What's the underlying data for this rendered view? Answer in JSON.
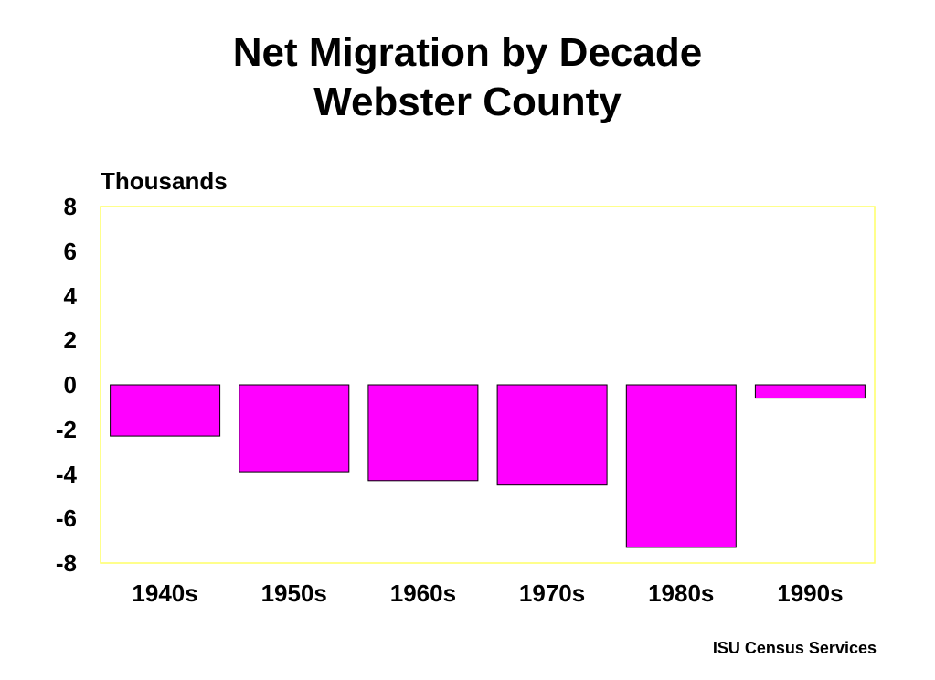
{
  "chart_data": {
    "type": "bar",
    "title": "Net Migration by Decade",
    "subtitle": "Webster County",
    "ylabel": "Thousands",
    "xlabel": "",
    "categories": [
      "1940s",
      "1950s",
      "1960s",
      "1970s",
      "1980s",
      "1990s"
    ],
    "values": [
      -2.3,
      -3.9,
      -4.3,
      -4.5,
      -7.3,
      -0.6
    ],
    "ylim": [
      -8,
      8
    ],
    "yticks": [
      "8",
      "6",
      "4",
      "2",
      "0",
      "-2",
      "-4",
      "-6",
      "-8"
    ],
    "grid": false,
    "legend": "none"
  },
  "source": "ISU Census Services",
  "colors": {
    "bar_fill": "#ff00ff",
    "bar_stroke": "#000000",
    "plot_border": "#ffff66",
    "background": "#ffffff"
  }
}
